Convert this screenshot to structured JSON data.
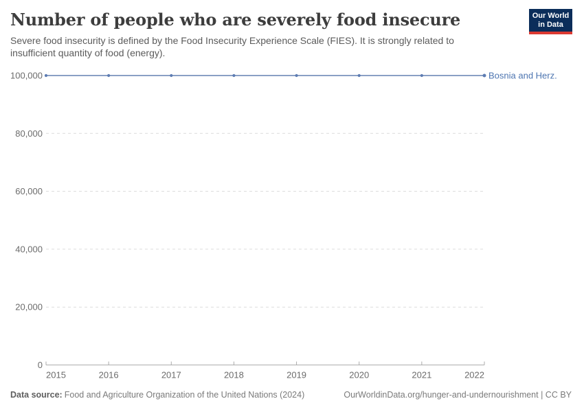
{
  "header": {
    "title": "Number of people who are severely food insecure",
    "subtitle": "Severe food insecurity is defined by the Food Insecurity Experience Scale (FIES). It is strongly related to insufficient quantity of food (energy).",
    "logo": {
      "line1": "Our World",
      "line2": "in Data"
    }
  },
  "chart_data": {
    "type": "line",
    "title": "Number of people who are severely food insecure",
    "x": [
      2015,
      2016,
      2017,
      2018,
      2019,
      2020,
      2021,
      2022
    ],
    "x_tick_labels": [
      "2015",
      "2016",
      "2017",
      "2018",
      "2019",
      "2020",
      "2021",
      "2022"
    ],
    "series": [
      {
        "name": "Bosnia and Herz.",
        "values": [
          100000,
          100000,
          100000,
          100000,
          100000,
          100000,
          100000,
          100000
        ],
        "color": "#8aa0c4",
        "dot_color": "#5e7db3",
        "label_color": "#4c74b0"
      }
    ],
    "ylim": [
      0,
      100000
    ],
    "y_ticks": [
      0,
      20000,
      40000,
      60000,
      80000,
      100000
    ],
    "y_tick_labels": [
      "0",
      "20,000",
      "40,000",
      "60,000",
      "80,000",
      "100,000"
    ],
    "grid": "dashed-horizontal",
    "legend_position": "right-of-line-end",
    "axis_color": "#ababab",
    "gridline_color": "#dcdcdc",
    "tick_label_color": "#6b6b6b"
  },
  "footer": {
    "source_label": "Data source:",
    "source": "Food and Agriculture Organization of the United Nations (2024)",
    "link": "OurWorldinData.org/hunger-and-undernourishment | CC BY"
  },
  "colors": {
    "logo_navy": "#0b2d5a",
    "logo_red": "#dc3932",
    "title_text": "#3d3d3d"
  }
}
